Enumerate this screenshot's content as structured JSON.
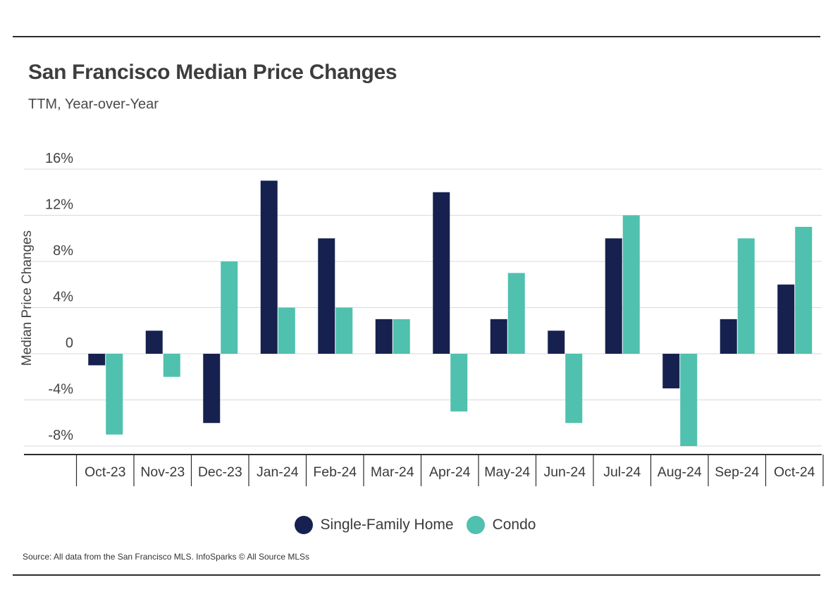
{
  "header": {
    "title": "San Francisco Median Price Changes",
    "subtitle": "TTM, Year-over-Year"
  },
  "footer": {
    "source": "Source:  All data from the San Francisco MLS. InfoSparks © All Source MLSs"
  },
  "colors": {
    "single_family": "#172150",
    "condo": "#4fc1ae",
    "gridline": "#d9d9d9",
    "axis": "#2b2b2b"
  },
  "chart_data": {
    "type": "bar",
    "title": "San Francisco Median Price Changes",
    "subtitle": "TTM, Year-over-Year",
    "xlabel": "",
    "ylabel": "Median Price Changes",
    "ylim": [
      -8,
      16
    ],
    "yticks": [
      16,
      12,
      8,
      4,
      0,
      -4,
      -8
    ],
    "ytick_labels": [
      "16%",
      "12%",
      "8%",
      "4%",
      "0",
      "-4%",
      "-8%"
    ],
    "grid": true,
    "legend_position": "bottom-center",
    "categories": [
      "Oct-23",
      "Nov-23",
      "Dec-23",
      "Jan-24",
      "Feb-24",
      "Mar-24",
      "Apr-24",
      "May-24",
      "Jun-24",
      "Jul-24",
      "Aug-24",
      "Sep-24",
      "Oct-24"
    ],
    "series": [
      {
        "name": "Single-Family Home",
        "values": [
          -1,
          2,
          -6,
          15,
          10,
          3,
          14,
          3,
          2,
          10,
          -3,
          3,
          6
        ]
      },
      {
        "name": "Condo",
        "values": [
          -7,
          -2,
          8,
          4,
          4,
          3,
          -5,
          7,
          -6,
          12,
          -8,
          10,
          11
        ]
      }
    ]
  }
}
